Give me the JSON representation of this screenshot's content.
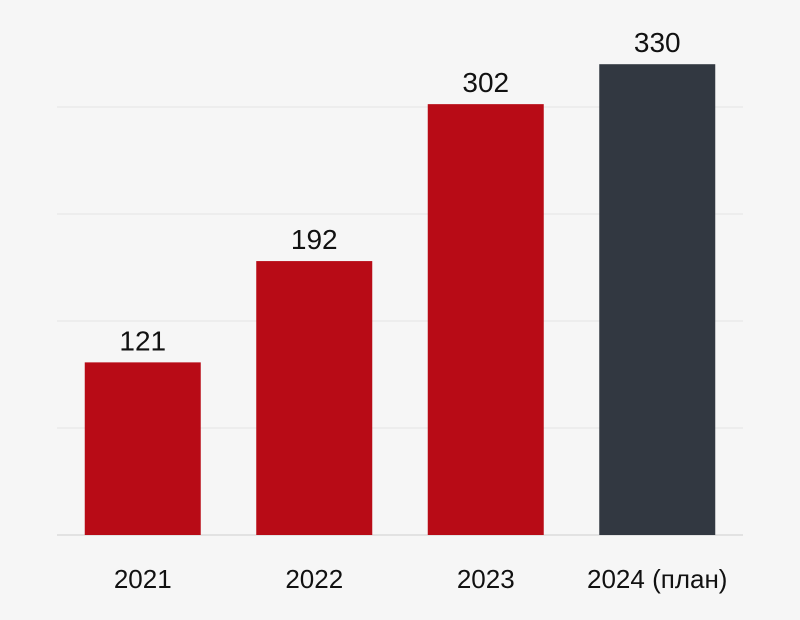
{
  "chart_data": {
    "type": "bar",
    "categories": [
      "2021",
      "2022",
      "2023",
      "2024 (план)"
    ],
    "values": [
      121,
      192,
      302,
      330
    ],
    "data_labels": [
      "121",
      "192",
      "302",
      "330"
    ],
    "bar_colors": [
      "#b80b16",
      "#b80b16",
      "#b80b16",
      "#323841"
    ],
    "ylim": [
      0,
      375
    ],
    "grid": true,
    "y_axis_visible": false,
    "title": "",
    "xlabel": "",
    "ylabel": ""
  },
  "colors": {
    "background": "#f6f6f6",
    "actual": "#b80b16",
    "plan": "#323841"
  }
}
